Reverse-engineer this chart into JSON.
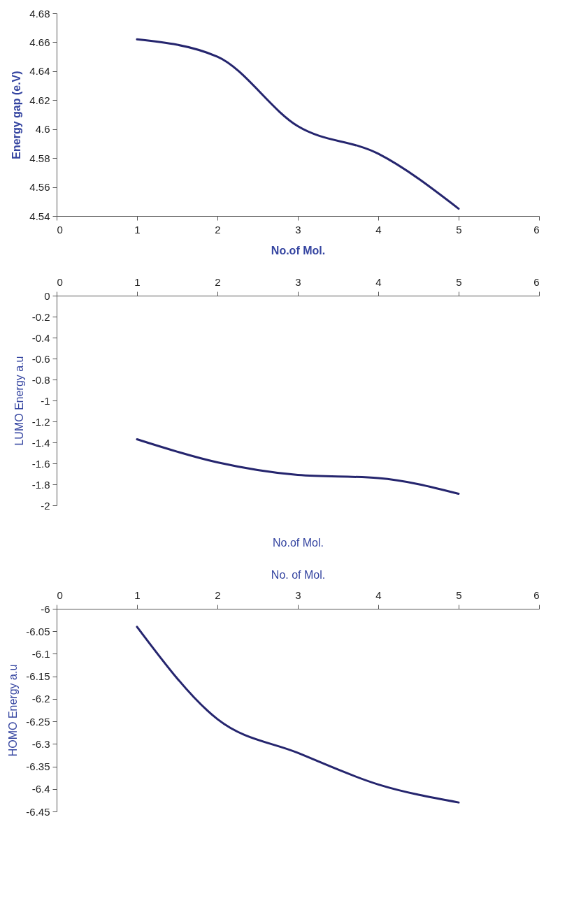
{
  "chart_data": [
    {
      "type": "line",
      "xlabel": "No.of Mol.",
      "ylabel": "Energy gap (e.V)",
      "x": [
        1,
        2,
        3,
        4,
        5
      ],
      "series": [
        {
          "color": "#25256e",
          "values": [
            4.662,
            4.65,
            4.602,
            4.583,
            4.545
          ]
        }
      ],
      "xlim": [
        0,
        6
      ],
      "xticks": [
        0,
        1,
        2,
        3,
        4,
        5,
        6
      ],
      "ylim": [
        4.54,
        4.68
      ],
      "yticks": [
        4.54,
        4.56,
        4.58,
        4.6,
        4.62,
        4.64,
        4.66,
        4.68
      ],
      "grid": false,
      "marker": "none",
      "line_style": "solid"
    },
    {
      "type": "line",
      "xlabel": "No.of Mol.",
      "ylabel": "LUMO Energy a.u",
      "x": [
        1,
        2,
        3,
        4,
        5
      ],
      "series": [
        {
          "color": "#25256e",
          "values": [
            -1.37,
            -1.59,
            -1.71,
            -1.74,
            -1.89
          ]
        }
      ],
      "xlim": [
        0,
        6
      ],
      "xticks": [
        0,
        1,
        2,
        3,
        4,
        5,
        6
      ],
      "ylim": [
        -2,
        0
      ],
      "yticks": [
        -2,
        -1.8,
        -1.6,
        -1.4,
        -1.2,
        -1,
        -0.8,
        -0.6,
        -0.4,
        -0.2,
        0
      ],
      "grid": false,
      "marker": "none",
      "line_style": "solid"
    },
    {
      "type": "line",
      "xlabel": "No. of Mol.",
      "ylabel": "HOMO Energy a.u",
      "x": [
        1,
        2,
        3,
        4,
        5
      ],
      "series": [
        {
          "color": "#25256e",
          "values": [
            -6.04,
            -6.245,
            -6.32,
            -6.39,
            -6.43
          ]
        }
      ],
      "xlim": [
        0,
        6
      ],
      "xticks": [
        0,
        1,
        2,
        3,
        4,
        5,
        6
      ],
      "ylim": [
        -6.45,
        -6
      ],
      "yticks": [
        -6.45,
        -6.4,
        -6.35,
        -6.3,
        -6.25,
        -6.2,
        -6.15,
        -6.1,
        -6.05,
        -6
      ],
      "grid": false,
      "marker": "none",
      "line_style": "solid"
    }
  ]
}
